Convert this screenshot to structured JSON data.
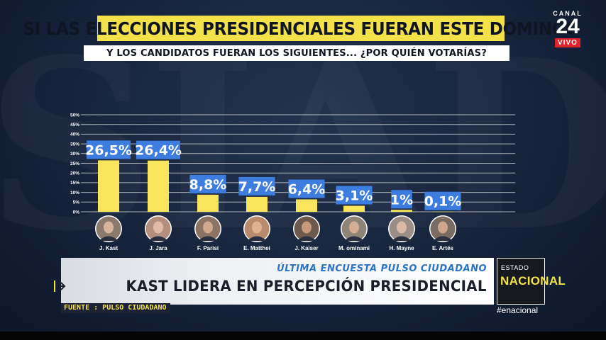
{
  "headline": "SI LAS ELECCIONES PRESIDENCIALES FUERAN ESTE DOMINGO",
  "subheadline": "Y LOS CANDIDATOS FUERAN LOS SIGUIENTES... ¿POR QUIÉN VOTARÍAS?",
  "logo": {
    "canal": "CANAL",
    "number": "24",
    "live": "VIVO",
    "live_color": "#e0232a"
  },
  "lower_third": {
    "kicker": "ÚLTIMA ENCUESTA PULSO CIUDADANO",
    "title": "KAST LIDERA EN PERCEPCIÓN PRESIDENCIAL",
    "source": "FUENTE : PULSO CIUDADANO",
    "arrow_icon": "arrow-right-icon"
  },
  "program": {
    "small": "ESTADO",
    "big": "NACIONAL",
    "hashtag": "#enacional"
  },
  "colors": {
    "bar": "#f9e55c",
    "label_bg": "#3d7de0",
    "headline_bg": "#f3e14a",
    "accent_blue": "#2b73c4"
  },
  "chart_data": {
    "type": "bar",
    "categories": [
      "J. Kast",
      "J. Jara",
      "F. Parisi",
      "E. Matthei",
      "J. Kaiser",
      "M. ominami",
      "H. Mayne",
      "E. Artés"
    ],
    "values": [
      26.5,
      26.4,
      8.8,
      7.7,
      6.4,
      3.1,
      1,
      0.1
    ],
    "value_labels": [
      "26,5%",
      "26,4%",
      "8,8%",
      "7,7%",
      "6,4%",
      "3,1%",
      "1%",
      "0,1%"
    ],
    "yticks": [
      "0%",
      "5%",
      "10%",
      "15%",
      "20%",
      "25%",
      "30%",
      "35%",
      "40%",
      "45%",
      "50%"
    ],
    "ylim": [
      0,
      50
    ],
    "grid": true,
    "title": "",
    "xlabel": "",
    "ylabel": ""
  }
}
